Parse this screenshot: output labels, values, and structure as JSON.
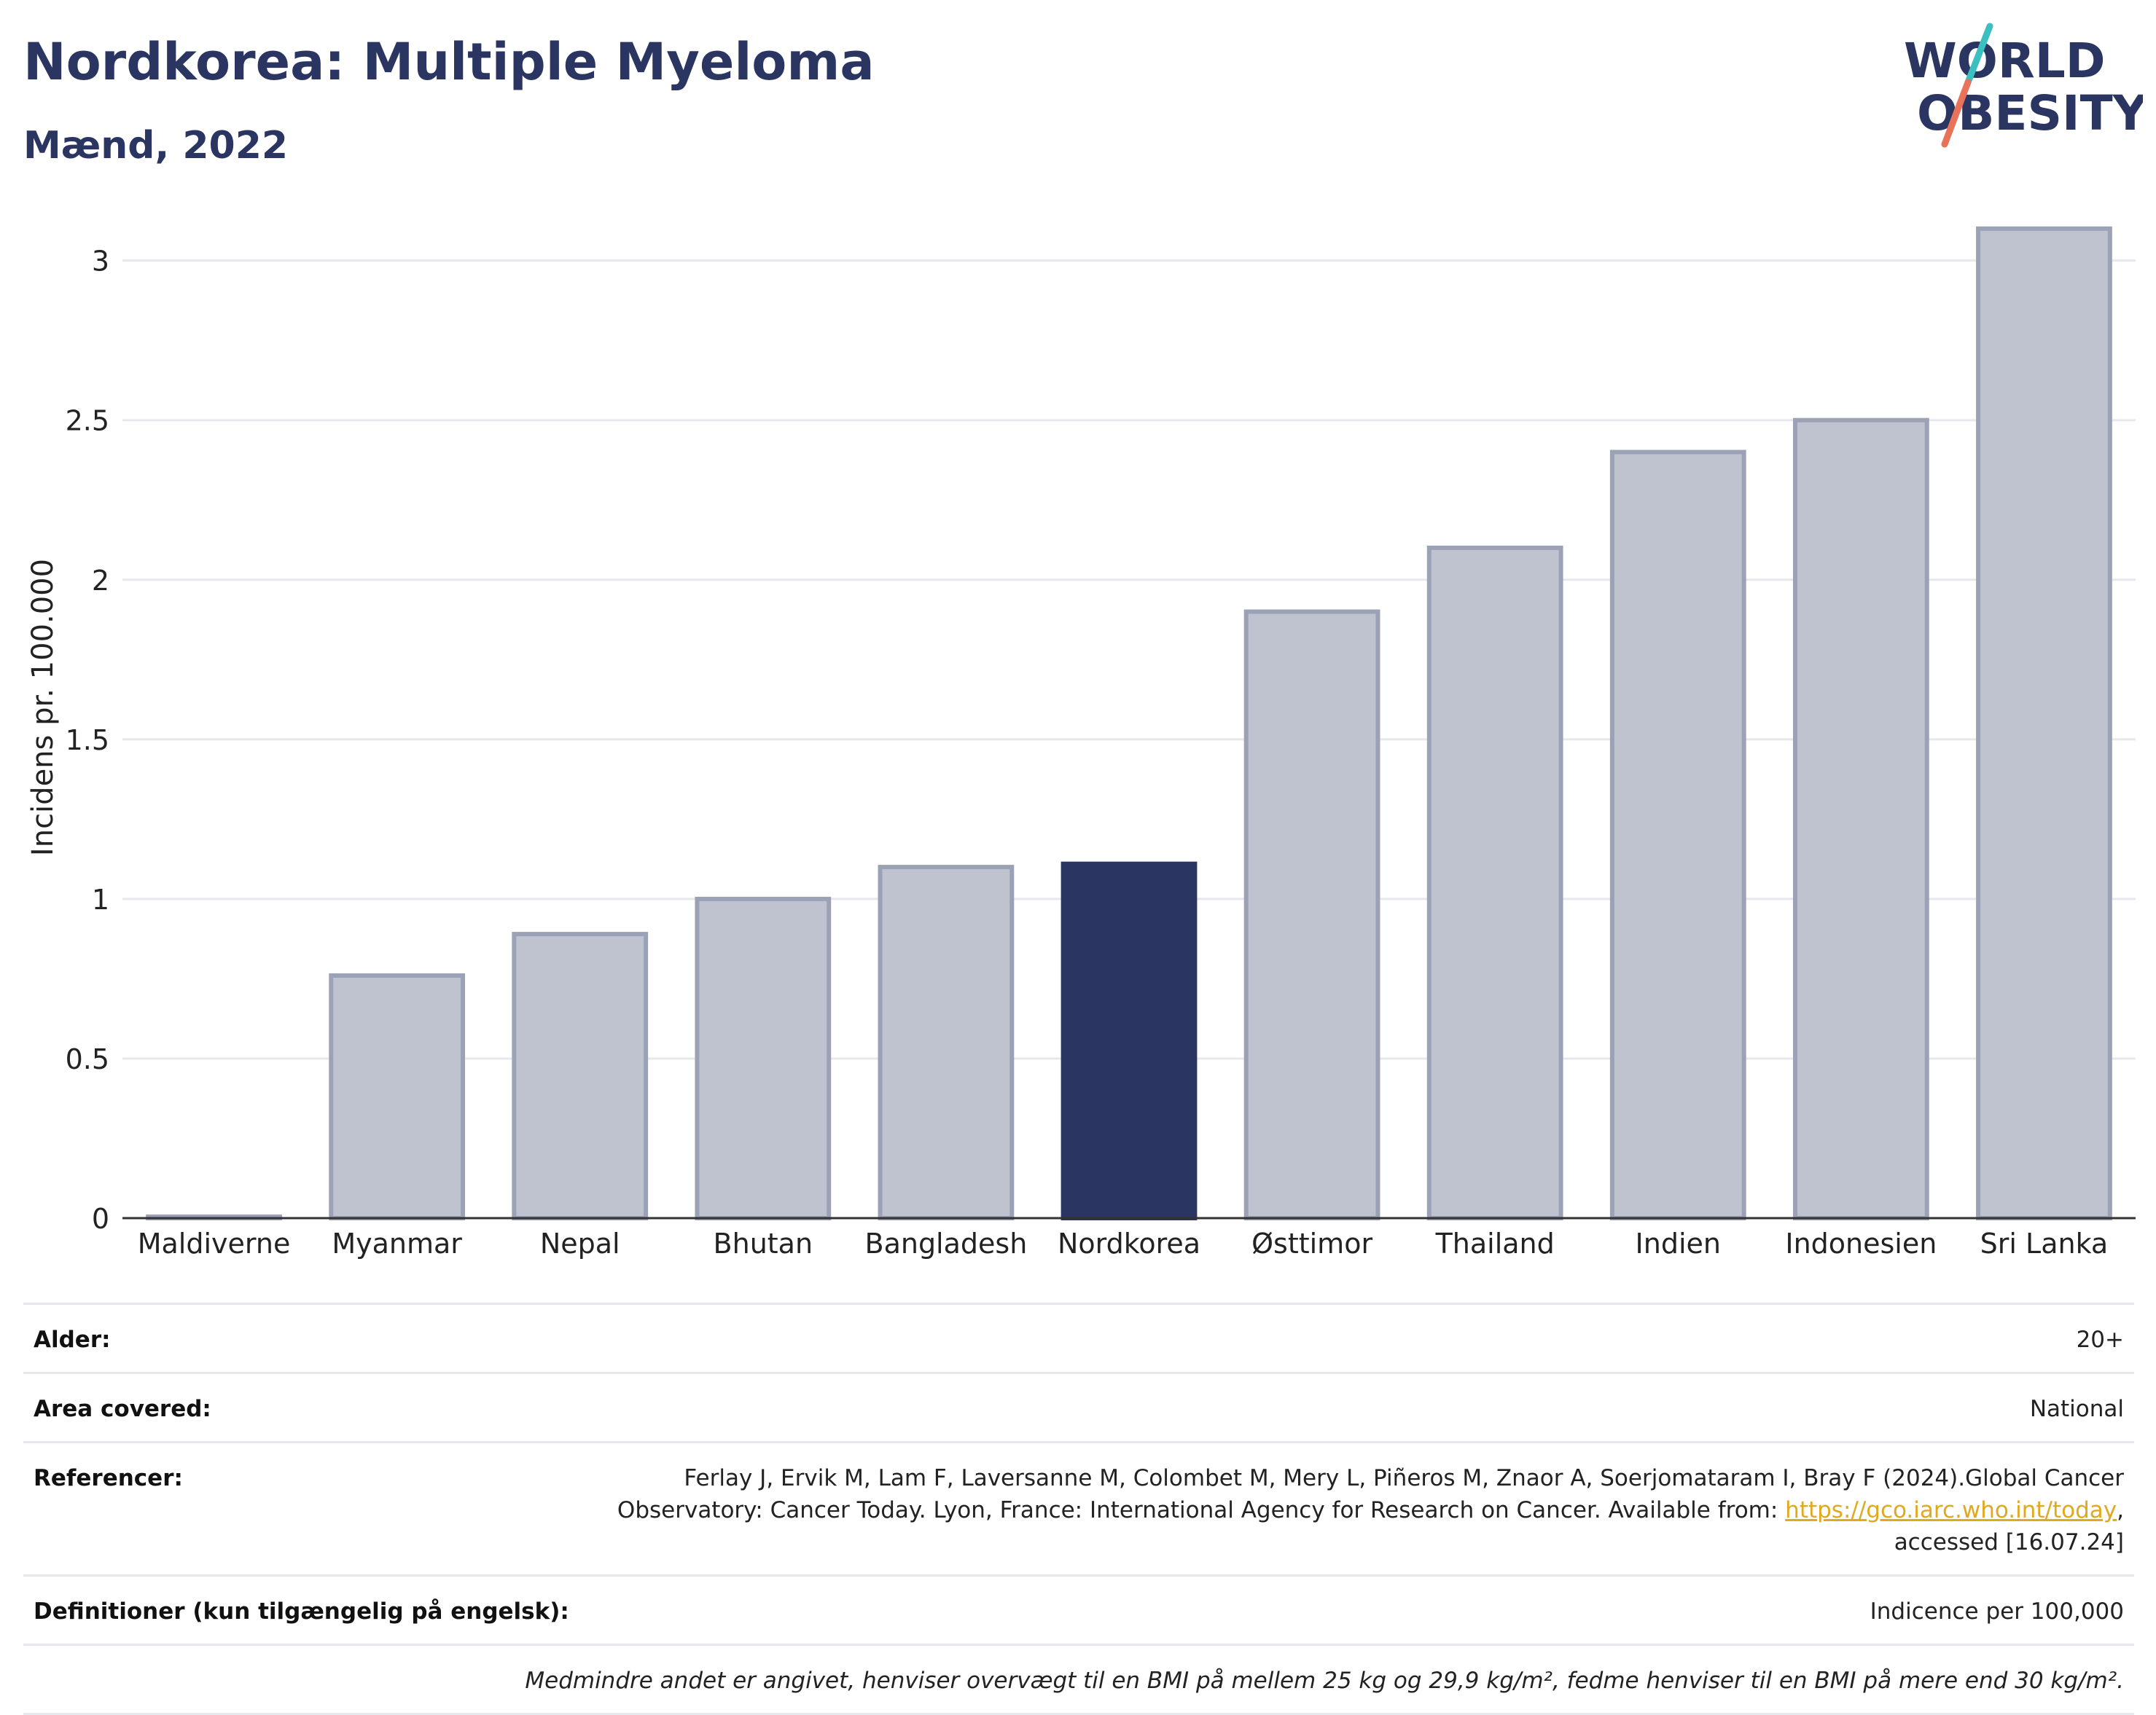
{
  "header": {
    "title": "Nordkorea: Multiple Myeloma",
    "subtitle": "Mænd, 2022"
  },
  "logo": {
    "line1": "WORLD",
    "line2": "OBESITY",
    "colors": {
      "text": "#2b3561",
      "slash_top": "#3bbfbf",
      "slash_bottom": "#e9735a"
    }
  },
  "chart_data": {
    "type": "bar",
    "categories": [
      "Maldiverne",
      "Myanmar",
      "Nepal",
      "Bhutan",
      "Bangladesh",
      "Nordkorea",
      "Østtimor",
      "Thailand",
      "Indien",
      "Indonesien",
      "Sri Lanka"
    ],
    "values": [
      0.0,
      0.76,
      0.89,
      1.0,
      1.1,
      1.11,
      1.9,
      2.1,
      2.4,
      2.5,
      3.1
    ],
    "highlight": "Nordkorea",
    "ylabel": "Incidens pr. 100.000",
    "yticks": [
      "0",
      "0.5",
      "1",
      "1.5",
      "2",
      "2.5",
      "3"
    ],
    "ylim": [
      0,
      3.2
    ],
    "grid": true,
    "colors": {
      "bar": "#bfc3d0",
      "bar_border": "#9ca2b6",
      "highlight": "#2b3561"
    }
  },
  "info": {
    "rows": [
      {
        "label": "Alder:",
        "value": "20+"
      },
      {
        "label": "Area covered:",
        "value": "National"
      },
      {
        "label": "Referencer:",
        "value_line1": "Ferlay J, Ervik M, Lam F, Laversanne M, Colombet M, Mery L, Piñeros M, Znaor A, Soerjomataram I, Bray F (2024).Global Cancer",
        "value_line2_pre": "Observatory: Cancer Today. Lyon, France: International Agency for Research on Cancer. Available from: ",
        "link": "https://gco.iarc.who.int/today",
        "value_line2_post": ",",
        "value_line3": "accessed [16.07.24]"
      },
      {
        "label": "Definitioner (kun tilgængelig på engelsk):",
        "value": "Indicence per 100,000"
      }
    ],
    "note": "Medmindre andet er angivet, henviser overvægt til en BMI på mellem 25 kg og 29,9 kg/m², fedme henviser til en BMI på mere end 30 kg/m²."
  }
}
